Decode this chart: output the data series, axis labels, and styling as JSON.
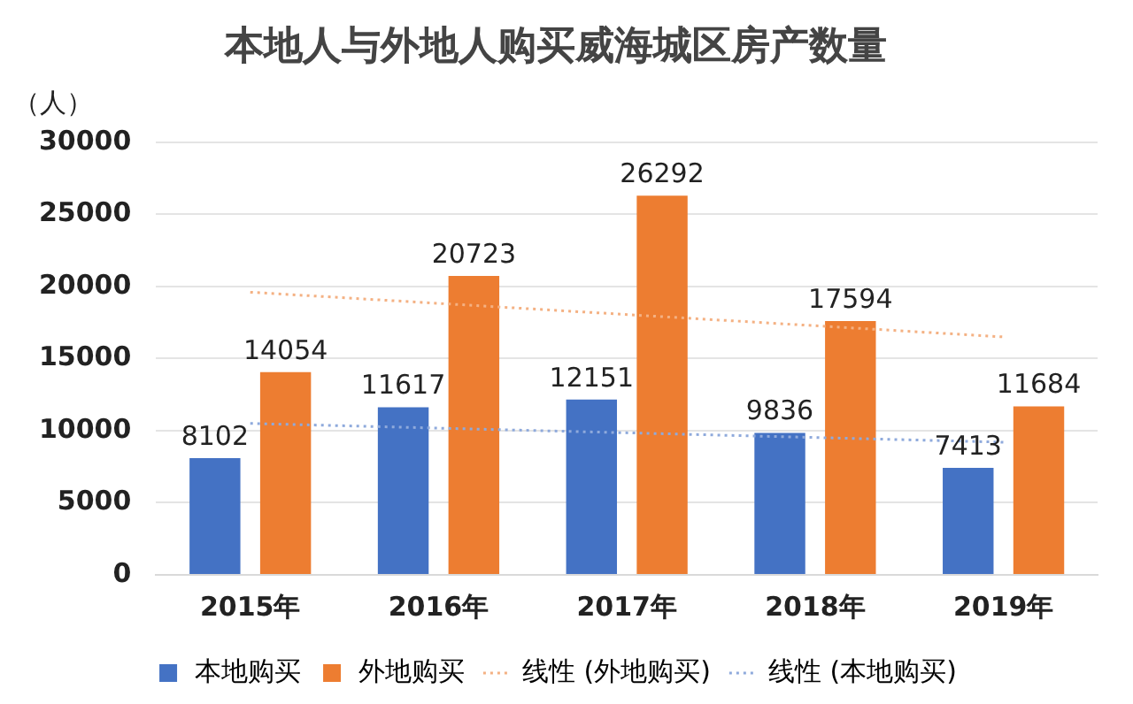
{
  "chart_data": {
    "type": "bar",
    "title": "本地人与外地人购买威海城区房产数量",
    "ylabel": "（人）",
    "categories": [
      "2015年",
      "2016年",
      "2017年",
      "2018年",
      "2019年"
    ],
    "series": [
      {
        "name": "本地购买",
        "color": "#4472c4",
        "values": [
          8102,
          11617,
          12151,
          9836,
          7413
        ],
        "value_labels": [
          "8102",
          "11617",
          "12151",
          "9836",
          "7413"
        ]
      },
      {
        "name": "外地购买",
        "color": "#ed7d31",
        "values": [
          14054,
          20723,
          26292,
          17594,
          11684
        ],
        "value_labels": [
          "14054",
          "20723",
          "26292",
          "17594",
          "11684"
        ]
      },
      {
        "name": "线性 (外地购买)",
        "type": "line",
        "color": "#f4b183",
        "line_style": "dotted",
        "marker": "none",
        "x": [
          "2015年",
          "2019年"
        ],
        "values": [
          19600,
          16500
        ]
      },
      {
        "name": "线性 (本地购买)",
        "type": "line",
        "color": "#8faadc",
        "line_style": "dotted",
        "marker": "none",
        "x": [
          "2015年",
          "2019年"
        ],
        "values": [
          10500,
          9200
        ]
      }
    ],
    "ylim": [
      0,
      30000
    ],
    "yticks": [
      0,
      5000,
      10000,
      15000,
      20000,
      25000,
      30000
    ],
    "grid": "y",
    "legend": "bottom"
  }
}
